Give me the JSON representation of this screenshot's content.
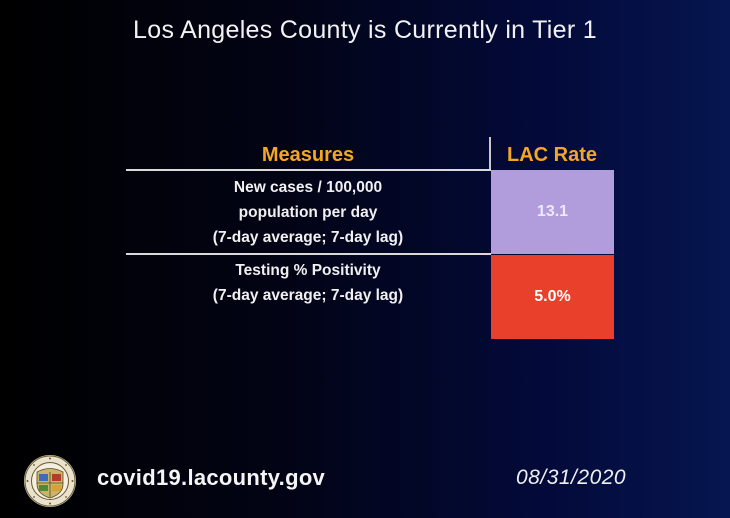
{
  "title": "Los Angeles County is Currently in Tier 1",
  "table": {
    "headers": {
      "measures": "Measures",
      "rate": "LAC Rate"
    },
    "rows": [
      {
        "measure_lines": [
          "New cases / 100,000",
          "population per day",
          "(7-day average; 7-day lag)"
        ],
        "rate": "13.1",
        "rate_color": "#b19ddc"
      },
      {
        "measure_lines": [
          "Testing % Positivity",
          "(7-day average; 7-day lag)"
        ],
        "rate": "5.0%",
        "rate_color": "#e8402a"
      }
    ]
  },
  "footer": {
    "seal_icon": "county-seal-icon",
    "url": "covid19.lacounty.gov",
    "date": "08/31/2020"
  },
  "colors": {
    "header_accent": "#f5a623",
    "background_dark": "#000000",
    "background_navy": "#061650"
  }
}
